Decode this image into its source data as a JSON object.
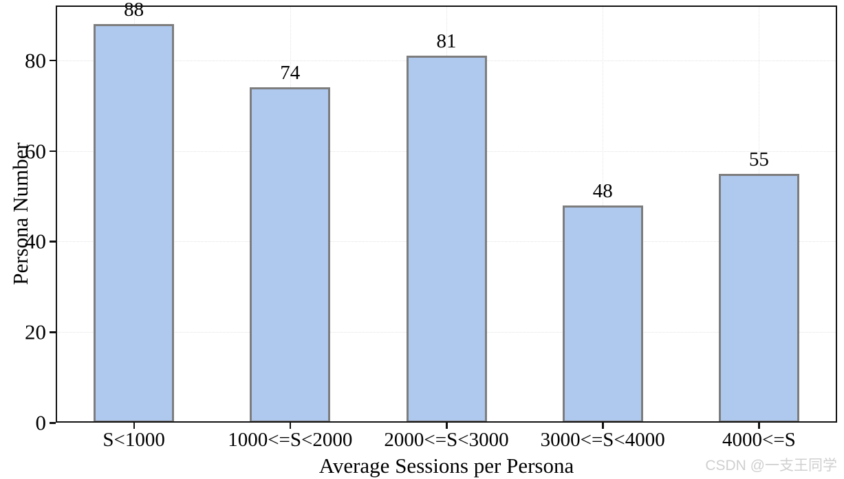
{
  "chart_data": {
    "type": "bar",
    "categories": [
      "S<1000",
      "1000<=S<2000",
      "2000<=S<3000",
      "3000<=S<4000",
      "4000<=S"
    ],
    "values": [
      88,
      74,
      81,
      48,
      55
    ],
    "value_labels": [
      "88",
      "74",
      "81",
      "48",
      "55"
    ],
    "title": "",
    "xlabel": "Average Sessions per Persona",
    "ylabel": "Persona Number",
    "ylim": [
      0,
      92.1
    ],
    "yticks": [
      0,
      20,
      40,
      60,
      80
    ],
    "ytick_labels": [
      "0",
      "20",
      "40",
      "60",
      "80"
    ],
    "bar_fill_color": "#aec8ee",
    "bar_edge_color": "#7d7d7d",
    "grid": {
      "style": "dotted",
      "color": "#e3e3e3",
      "axes": "both"
    },
    "legend": "none"
  },
  "watermark": {
    "text": "CSDN @一支王同学",
    "color": "#cfcfcf"
  }
}
